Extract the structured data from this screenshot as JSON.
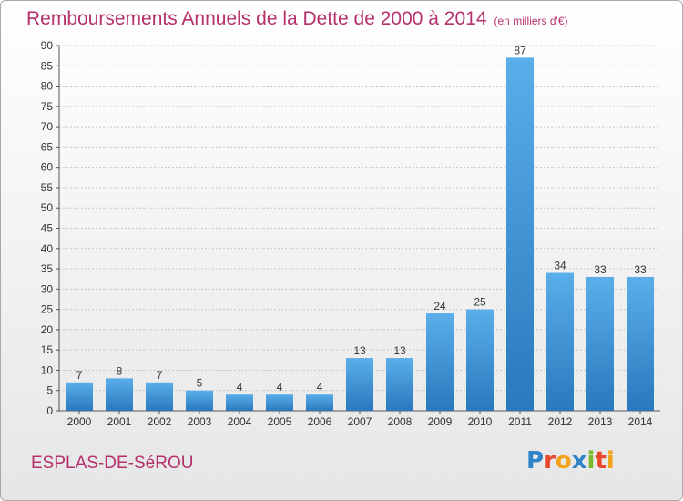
{
  "header": {
    "title": "Remboursements Annuels de la Dette de 2000 à 2014",
    "unit": "(en milliers d'€)"
  },
  "footer": {
    "commune": "ESPLAS-DE-SéROU",
    "logo_letters": [
      "P",
      "r",
      "o",
      "x",
      "i",
      "t",
      "i"
    ],
    "logo_colors": [
      "#2f83c8",
      "#e8472b",
      "#f1a31b",
      "#2f83c8",
      "#7ab929",
      "#e8472b",
      "#f1a31b"
    ]
  },
  "colors": {
    "bar": "#4a9fe0",
    "bar_dark": "#2f7cc0",
    "title": "#b5316c",
    "grid": "#c8c8c8"
  },
  "chart_data": {
    "type": "bar",
    "title": "Remboursements Annuels de la Dette de 2000 à 2014",
    "subtitle": "(en milliers d'€)",
    "categories": [
      "2000",
      "2001",
      "2002",
      "2003",
      "2004",
      "2005",
      "2006",
      "2007",
      "2008",
      "2009",
      "2010",
      "2011",
      "2012",
      "2013",
      "2014"
    ],
    "values": [
      7,
      8,
      7,
      5,
      4,
      4,
      4,
      13,
      13,
      24,
      25,
      87,
      34,
      33,
      33
    ],
    "ylim": [
      0,
      90
    ],
    "yticks": [
      0,
      5,
      10,
      15,
      20,
      25,
      30,
      35,
      40,
      45,
      50,
      55,
      60,
      65,
      70,
      75,
      80,
      85,
      90
    ],
    "grid": true,
    "legend": "none"
  }
}
